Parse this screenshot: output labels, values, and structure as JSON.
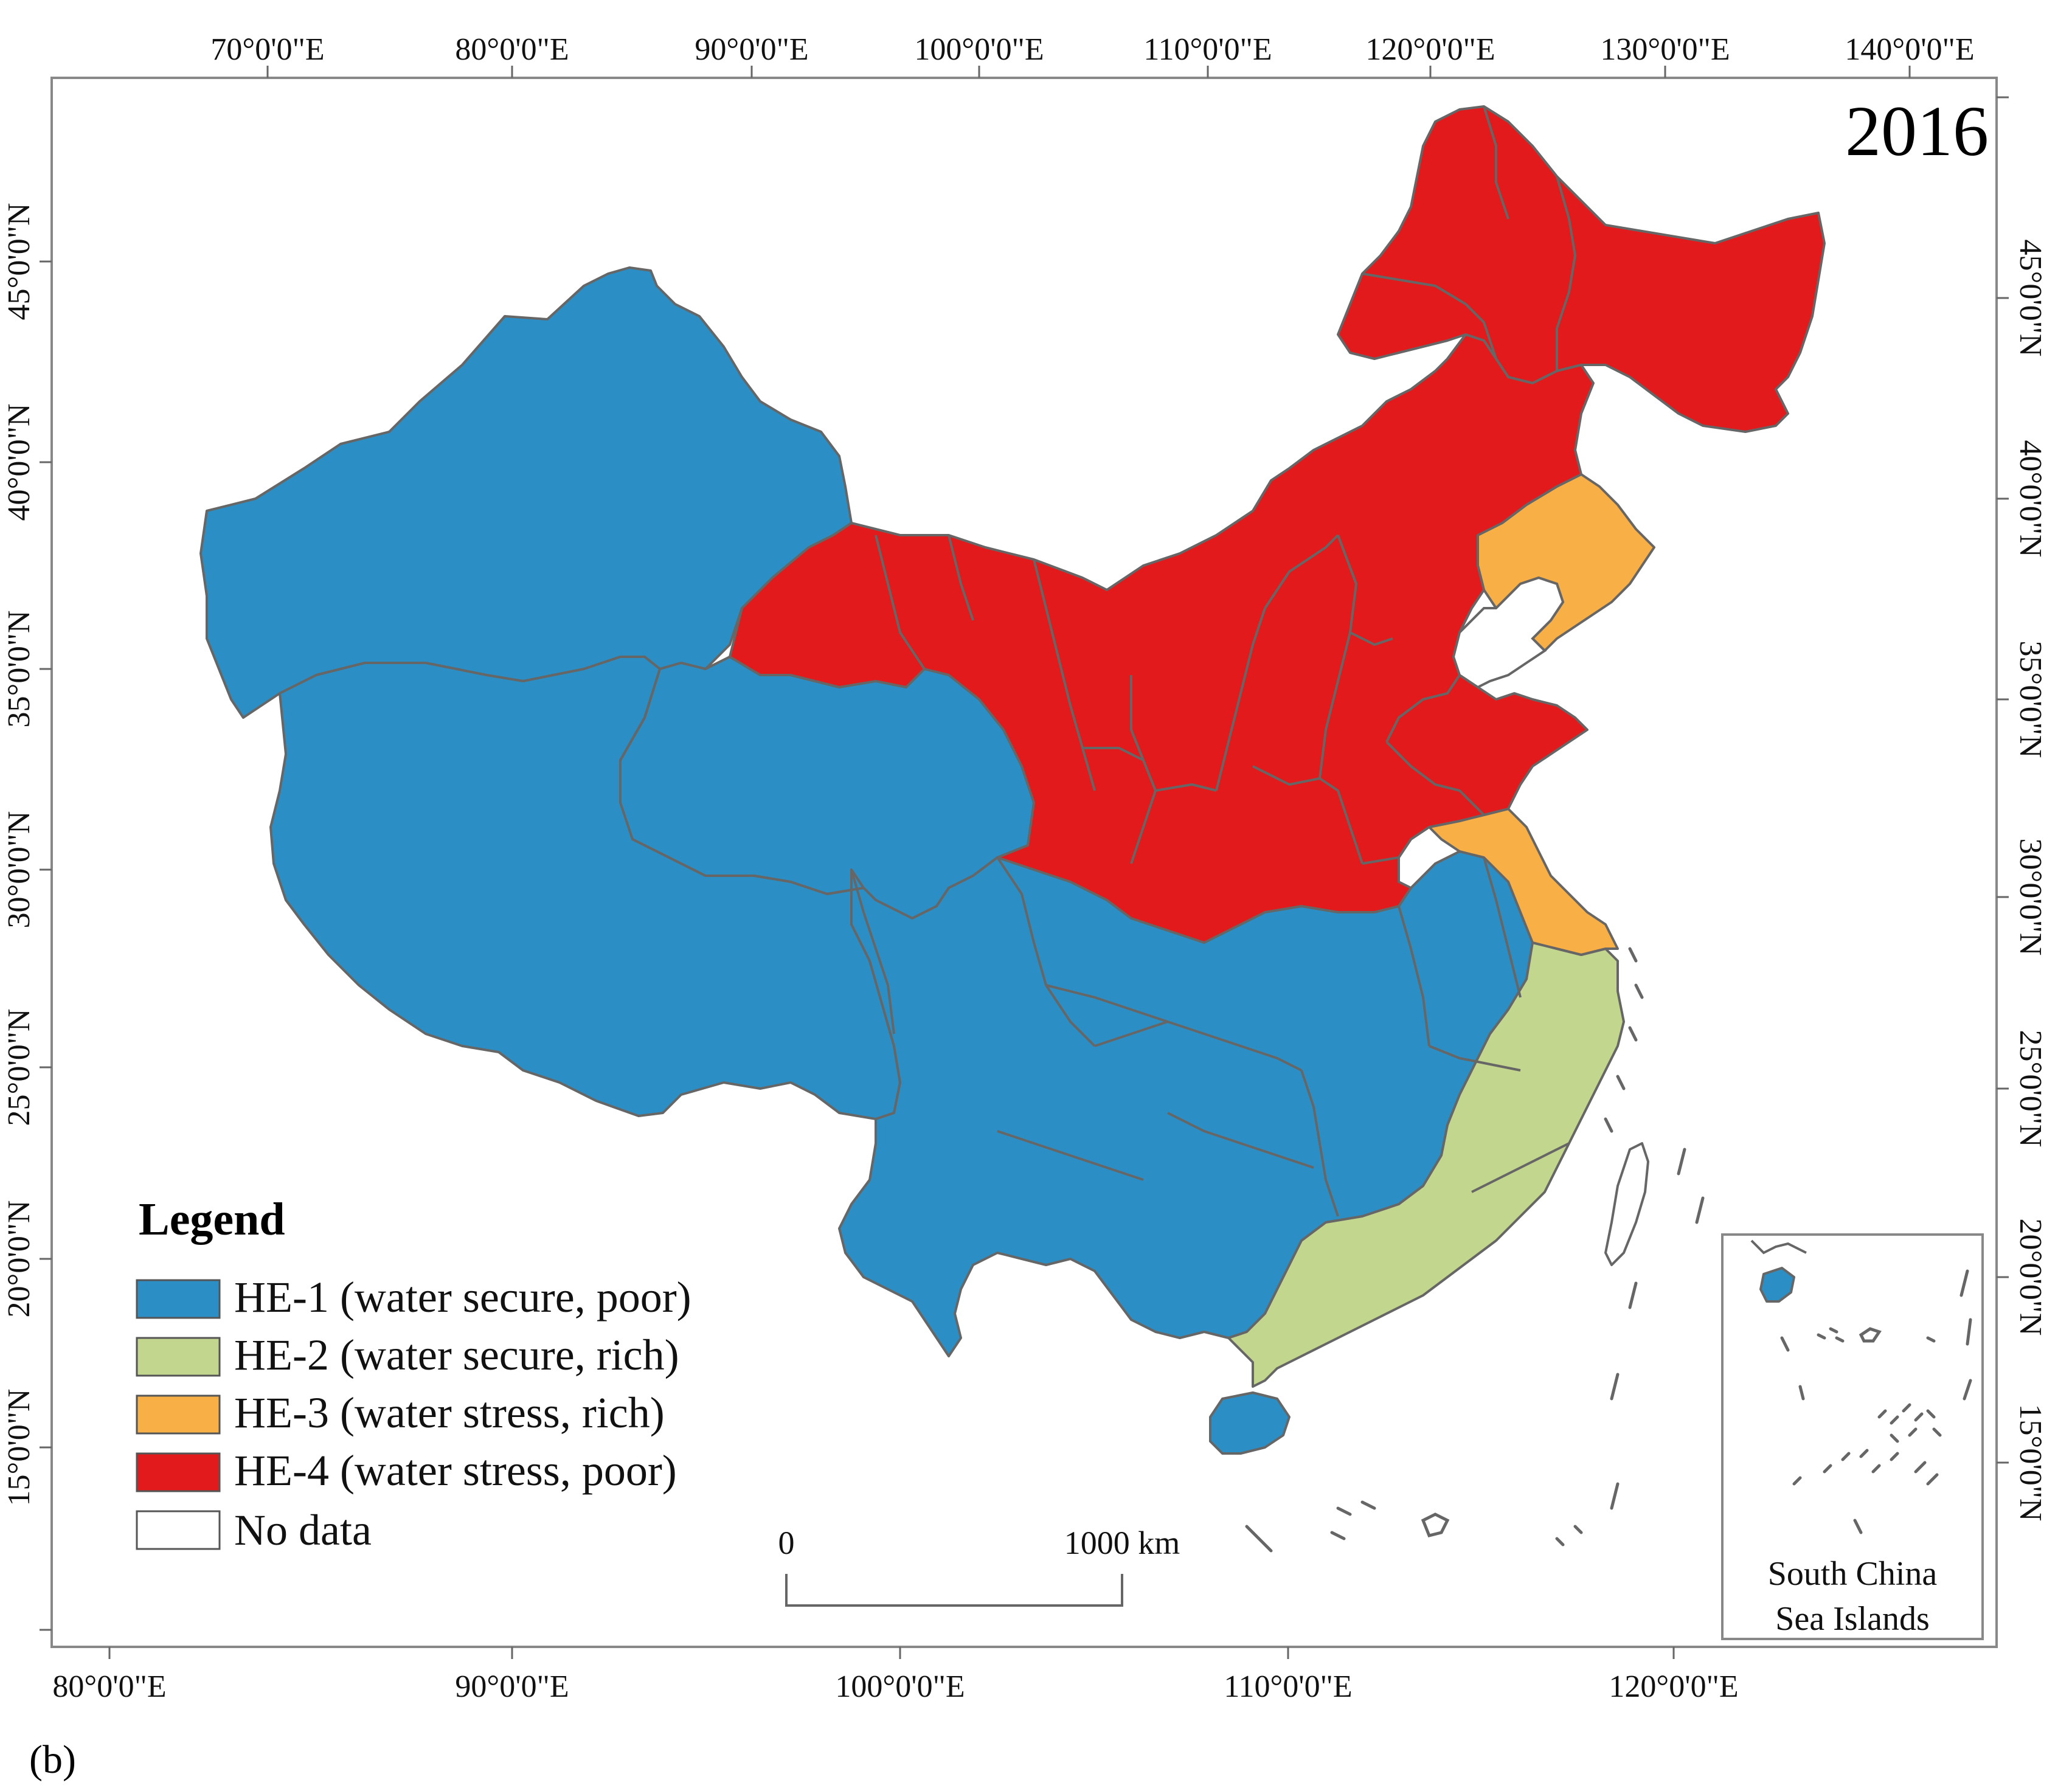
{
  "map": {
    "year": "2016",
    "panel_label": "(b)",
    "top_axis_labels": [
      "70°0'0\"E",
      "80°0'0\"E",
      "90°0'0\"E",
      "100°0'0\"E",
      "110°0'0\"E",
      "120°0'0\"E",
      "130°0'0\"E",
      "140°0'0\"E"
    ],
    "bottom_axis_labels": [
      "80°0'0\"E",
      "90°0'0\"E",
      "100°0'0\"E",
      "110°0'0\"E",
      "120°0'0\"E"
    ],
    "left_axis_labels": [
      "45°0'0\"N",
      "40°0'0\"N",
      "35°0'0\"N",
      "30°0'0\"N",
      "25°0'0\"N",
      "20°0'0\"N",
      "15°0'0\"N"
    ],
    "right_axis_labels": [
      "45°0'0\"N",
      "40°0'0\"N",
      "35°0'0\"N",
      "30°0'0\"N",
      "25°0'0\"N",
      "20°0'0\"N",
      "15°0'0\"N"
    ],
    "scale_bar": {
      "start_label": "0",
      "end_label": "1000 km"
    },
    "inset": {
      "line1": "South China",
      "line2": "Sea Islands"
    }
  },
  "legend": {
    "title": "Legend",
    "items": [
      {
        "label": "HE-1 (water secure, poor)",
        "color": "#2b8fc5"
      },
      {
        "label": "HE-2 (water secure, rich)",
        "color": "#c3d68e"
      },
      {
        "label": "HE-3 (water stress, rich)",
        "color": "#f8af46"
      },
      {
        "label": "HE-4 (water stress, poor)",
        "color": "#e31a1c"
      },
      {
        "label": "No data",
        "color": "#ffffff"
      }
    ]
  }
}
